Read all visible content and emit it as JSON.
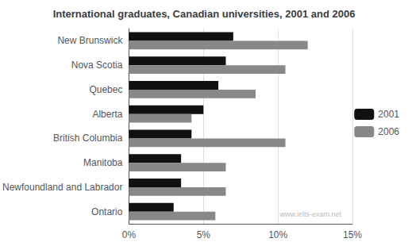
{
  "chart_data": {
    "type": "bar",
    "orientation": "horizontal",
    "title": "International graduates, Canadian universities, 2001 and 2006",
    "categories": [
      "New Brunswick",
      "Nova Scotia",
      "Quebec",
      "Alberta",
      "British Columbia",
      "Manitoba",
      "Newfoundland and Labrador",
      "Ontario"
    ],
    "series": [
      {
        "name": "2001",
        "color": "#111111",
        "values": [
          7.0,
          6.5,
          6.0,
          5.0,
          4.2,
          3.5,
          3.5,
          3.0
        ]
      },
      {
        "name": "2006",
        "color": "#888888",
        "values": [
          12.0,
          10.5,
          8.5,
          4.2,
          10.5,
          6.5,
          6.5,
          5.8
        ]
      }
    ],
    "xlim": [
      0,
      15
    ],
    "xticks": [
      {
        "value": 0,
        "label": "0%"
      },
      {
        "value": 5,
        "label": "5%"
      },
      {
        "value": 10,
        "label": "10%"
      },
      {
        "value": 15,
        "label": "15%"
      }
    ],
    "grid": true,
    "legend": "right",
    "annotations": [
      "www.ielts-exam.net"
    ]
  }
}
